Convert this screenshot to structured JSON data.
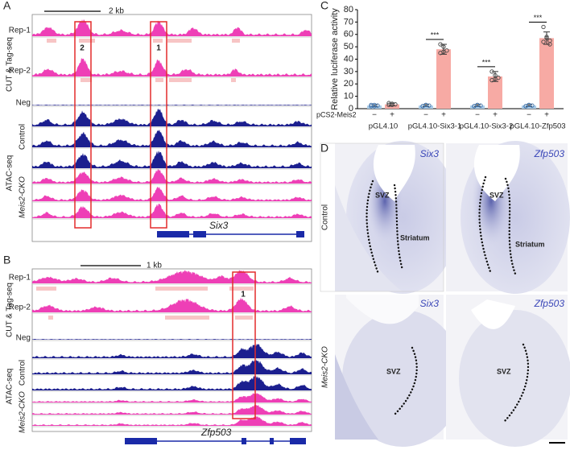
{
  "panel_a": {
    "letter": "A",
    "scale": "2 kb",
    "tracks": [
      "Rep-1",
      "Rep-2",
      "Neg",
      "Control",
      "Meis2-CKO"
    ],
    "assays": [
      "CUT & Tag-seq",
      "ATAC-seq"
    ],
    "regions": [
      "2",
      "1"
    ],
    "gene": "Six3"
  },
  "panel_b": {
    "letter": "B",
    "scale": "1 kb",
    "tracks": [
      "Rep-1",
      "Rep-2",
      "Neg",
      "Control",
      "Meis2-CKO"
    ],
    "assays": [
      "CUT & Tag-seq",
      "ATAC-seq"
    ],
    "regions": [
      "1"
    ],
    "gene": "Zfp503"
  },
  "panel_c": {
    "letter": "C"
  },
  "chart_data": {
    "type": "bar",
    "ylabel": "Relative luciferase activity",
    "row_label": "pCS2-Meis2",
    "groups": [
      "pGL4.10",
      "pGL4.10-Six3-1",
      "pGL4.10-Six3-2",
      "pGL4.10-Zfp503"
    ],
    "categories": [
      "−",
      "+",
      "−",
      "+",
      "−",
      "+",
      "−",
      "+"
    ],
    "values": [
      2.5,
      3.5,
      2.5,
      48,
      2.5,
      26,
      2.5,
      57
    ],
    "errors": [
      0.8,
      1,
      0.8,
      4,
      0.8,
      4,
      0.8,
      5
    ],
    "points": [
      [
        2,
        3,
        2.5,
        3,
        2
      ],
      [
        3,
        4,
        3.5,
        4.5,
        3
      ],
      [
        2,
        3,
        2.5,
        2,
        3
      ],
      [
        52,
        50,
        47,
        45,
        46
      ],
      [
        2,
        3,
        2.5,
        2,
        3
      ],
      [
        30,
        27,
        25,
        23,
        24
      ],
      [
        2,
        3,
        2.5,
        2,
        3
      ],
      [
        66,
        58,
        55,
        54,
        57,
        52
      ]
    ],
    "colors": [
      "#a9cbe8",
      "#f7aaa4",
      "#a9cbe8",
      "#f7aaa4",
      "#a9cbe8",
      "#f7aaa4",
      "#a9cbe8",
      "#f7aaa4"
    ],
    "significance": [
      null,
      "***",
      "***",
      "***"
    ],
    "ylim": [
      0,
      80
    ],
    "yticks": [
      0,
      10,
      20,
      30,
      40,
      50,
      60,
      70,
      80
    ]
  },
  "panel_d": {
    "letter": "D",
    "rows": [
      "Control",
      "Meis2-CKO"
    ],
    "genes": [
      "Six3",
      "Zfp503"
    ],
    "regions": [
      "SVZ",
      "Striatum"
    ]
  }
}
